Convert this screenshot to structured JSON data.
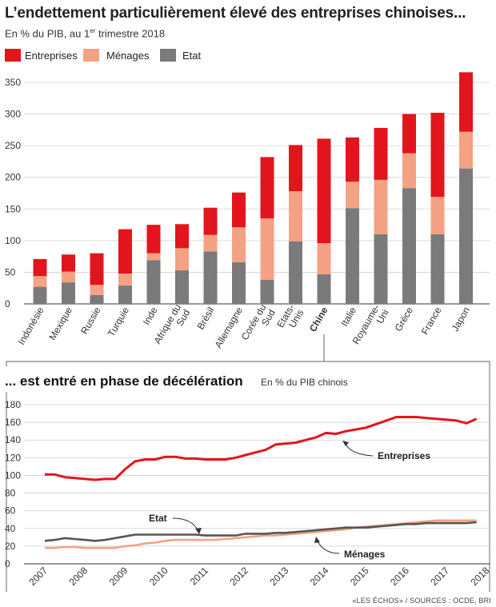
{
  "header": {
    "title": "L’endettement particulièrement élevé des entreprises chinoises...",
    "subtitle_main": "En % du PIB, au 1",
    "subtitle_sup": "er",
    "subtitle_end": " trimestre 2018"
  },
  "colors": {
    "entreprises": "#e3151c",
    "menages": "#f4a283",
    "etat": "#7a7a7a",
    "menages_line": "#f3a283",
    "etat_line": "#555555"
  },
  "chart_data": [
    {
      "type": "bar",
      "stacked": true,
      "title": "L’endettement particulièrement élevé des entreprises chinoises...",
      "subtitle": "En % du PIB, au 1er trimestre 2018",
      "legend": [
        "Entreprises",
        "Ménages",
        "Etat"
      ],
      "legend_position": "top-left",
      "categories": [
        "Indonésie",
        "Mexique",
        "Russie",
        "Turquie",
        "Inde",
        "Afrique du Sud",
        "Brésil",
        "Allemagne",
        "Corée du Sud",
        "Etats-Unis",
        "Chine",
        "Italie",
        "Royaume-Uni",
        "Grèce",
        "France",
        "Japon"
      ],
      "highlight": "Chine",
      "ylim": [
        0,
        375
      ],
      "yticks": [
        0,
        50,
        100,
        150,
        200,
        250,
        300,
        350
      ],
      "grid": true,
      "series": [
        {
          "name": "Etat",
          "values": [
            27,
            34,
            14,
            29,
            69,
            53,
            83,
            66,
            38,
            99,
            47,
            151,
            110,
            183,
            110,
            214
          ]
        },
        {
          "name": "Ménages",
          "values": [
            17,
            17,
            16,
            19,
            11,
            35,
            26,
            55,
            97,
            79,
            49,
            42,
            86,
            55,
            59,
            58
          ]
        },
        {
          "name": "Entreprises",
          "values": [
            27,
            27,
            50,
            70,
            45,
            38,
            43,
            55,
            97,
            73,
            165,
            70,
            82,
            62,
            133,
            94
          ]
        }
      ]
    },
    {
      "type": "line",
      "title": "... est entré en phase de décélération",
      "subtitle": "En % du PIB chinois",
      "x": [
        "2007",
        "2008",
        "2009",
        "2010",
        "2011",
        "2012",
        "2013",
        "2014",
        "2015",
        "2016",
        "2017",
        "2018"
      ],
      "ylim": [
        0,
        180
      ],
      "yticks": [
        0,
        20,
        40,
        60,
        80,
        100,
        120,
        140,
        160,
        180
      ],
      "grid": true,
      "series": [
        {
          "name": "Entreprises",
          "points": [
            [
              2007.0,
              101
            ],
            [
              2007.25,
              101
            ],
            [
              2007.5,
              98
            ],
            [
              2007.75,
              97
            ],
            [
              2008.0,
              96
            ],
            [
              2008.25,
              95
            ],
            [
              2008.5,
              96
            ],
            [
              2008.75,
              96
            ],
            [
              2009.0,
              107
            ],
            [
              2009.25,
              116
            ],
            [
              2009.5,
              118
            ],
            [
              2009.75,
              118
            ],
            [
              2010.0,
              121
            ],
            [
              2010.25,
              121
            ],
            [
              2010.5,
              119
            ],
            [
              2010.75,
              119
            ],
            [
              2011.0,
              118
            ],
            [
              2011.25,
              118
            ],
            [
              2011.5,
              118
            ],
            [
              2011.75,
              120
            ],
            [
              2012.0,
              123
            ],
            [
              2012.25,
              126
            ],
            [
              2012.5,
              129
            ],
            [
              2012.75,
              135
            ],
            [
              2013.0,
              136
            ],
            [
              2013.25,
              137
            ],
            [
              2013.5,
              140
            ],
            [
              2013.75,
              143
            ],
            [
              2014.0,
              148
            ],
            [
              2014.25,
              147
            ],
            [
              2014.5,
              150
            ],
            [
              2014.75,
              152
            ],
            [
              2015.0,
              154
            ],
            [
              2015.25,
              158
            ],
            [
              2015.5,
              162
            ],
            [
              2015.75,
              166
            ],
            [
              2016.0,
              166
            ],
            [
              2016.25,
              166
            ],
            [
              2016.5,
              165
            ],
            [
              2016.75,
              164
            ],
            [
              2017.0,
              163
            ],
            [
              2017.25,
              162
            ],
            [
              2017.5,
              159
            ],
            [
              2017.75,
              164
            ]
          ]
        },
        {
          "name": "Etat",
          "points": [
            [
              2007.0,
              26
            ],
            [
              2007.25,
              27
            ],
            [
              2007.5,
              29
            ],
            [
              2007.75,
              28
            ],
            [
              2008.0,
              27
            ],
            [
              2008.25,
              26
            ],
            [
              2008.5,
              27
            ],
            [
              2008.75,
              29
            ],
            [
              2009.0,
              31
            ],
            [
              2009.25,
              33
            ],
            [
              2009.5,
              33
            ],
            [
              2009.75,
              33
            ],
            [
              2010.0,
              33
            ],
            [
              2010.25,
              33
            ],
            [
              2010.5,
              33
            ],
            [
              2010.75,
              33
            ],
            [
              2011.0,
              32
            ],
            [
              2011.25,
              32
            ],
            [
              2011.5,
              32
            ],
            [
              2011.75,
              32
            ],
            [
              2012.0,
              34
            ],
            [
              2012.25,
              34
            ],
            [
              2012.5,
              34
            ],
            [
              2012.75,
              35
            ],
            [
              2013.0,
              35
            ],
            [
              2013.25,
              36
            ],
            [
              2013.5,
              37
            ],
            [
              2013.75,
              38
            ],
            [
              2014.0,
              39
            ],
            [
              2014.25,
              40
            ],
            [
              2014.5,
              41
            ],
            [
              2014.75,
              41
            ],
            [
              2015.0,
              41
            ],
            [
              2015.25,
              42
            ],
            [
              2015.5,
              43
            ],
            [
              2015.75,
              44
            ],
            [
              2016.0,
              45
            ],
            [
              2016.25,
              45
            ],
            [
              2016.5,
              46
            ],
            [
              2016.75,
              46
            ],
            [
              2017.0,
              46
            ],
            [
              2017.25,
              46
            ],
            [
              2017.5,
              46
            ],
            [
              2017.75,
              47
            ]
          ]
        },
        {
          "name": "Ménages",
          "points": [
            [
              2007.0,
              18
            ],
            [
              2007.25,
              18
            ],
            [
              2007.5,
              19
            ],
            [
              2007.75,
              19
            ],
            [
              2008.0,
              18
            ],
            [
              2008.25,
              18
            ],
            [
              2008.5,
              18
            ],
            [
              2008.75,
              18
            ],
            [
              2009.0,
              20
            ],
            [
              2009.25,
              21
            ],
            [
              2009.5,
              23
            ],
            [
              2009.75,
              24
            ],
            [
              2010.0,
              26
            ],
            [
              2010.25,
              27
            ],
            [
              2010.5,
              27
            ],
            [
              2010.75,
              27
            ],
            [
              2011.0,
              27
            ],
            [
              2011.25,
              27
            ],
            [
              2011.5,
              28
            ],
            [
              2011.75,
              29
            ],
            [
              2012.0,
              30
            ],
            [
              2012.25,
              31
            ],
            [
              2012.5,
              32
            ],
            [
              2012.75,
              32
            ],
            [
              2013.0,
              33
            ],
            [
              2013.25,
              34
            ],
            [
              2013.5,
              35
            ],
            [
              2013.75,
              36
            ],
            [
              2014.0,
              37
            ],
            [
              2014.25,
              38
            ],
            [
              2014.5,
              39
            ],
            [
              2014.75,
              41
            ],
            [
              2015.0,
              42
            ],
            [
              2015.25,
              43
            ],
            [
              2015.5,
              44
            ],
            [
              2015.75,
              45
            ],
            [
              2016.0,
              46
            ],
            [
              2016.25,
              47
            ],
            [
              2016.5,
              48
            ],
            [
              2016.75,
              49
            ],
            [
              2017.0,
              49
            ],
            [
              2017.25,
              49
            ],
            [
              2017.5,
              49
            ],
            [
              2017.75,
              49
            ]
          ]
        }
      ],
      "annotations": [
        "Entreprises",
        "Etat",
        "Ménages"
      ]
    }
  ],
  "line_section": {
    "title": "... est entré en phase de décélération",
    "subtitle": "En % du PIB chinois"
  },
  "source": "«LES ÉCHOS» / SOURCES : OCDE, BRI"
}
